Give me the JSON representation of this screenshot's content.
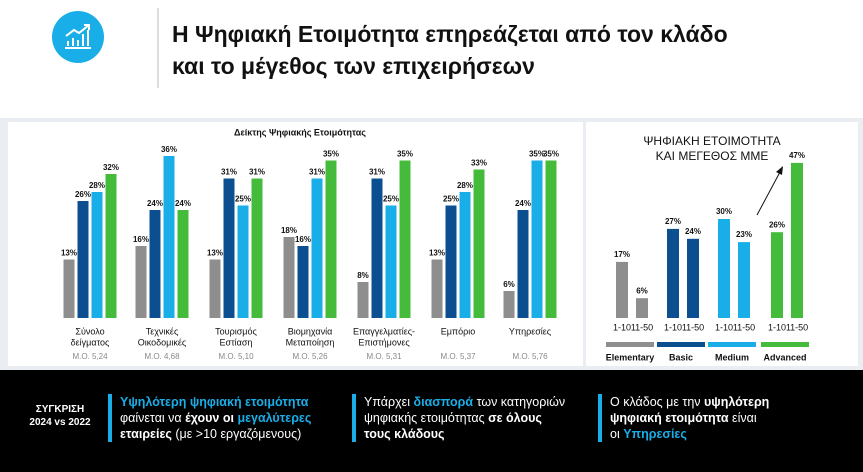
{
  "header": {
    "title_lines": [
      "Η Ψηφιακή Ετοιμότητα επηρεάζεται από τον κλάδο",
      "και το μέγεθος των επιχειρήσεων"
    ]
  },
  "chart_data": [
    {
      "type": "bar",
      "title": "Δείκτης Ψηφιακής Ετοιμότητας",
      "categories": [
        [
          "Σύνολο",
          "δείγματος"
        ],
        [
          "Τεχνικές",
          "Οικοδομικές"
        ],
        [
          "Τουρισμός",
          "Εστίαση"
        ],
        [
          "Βιομηχανία",
          "Μεταποίηση"
        ],
        [
          "Επαγγελματίες-",
          "Επιστήμονες"
        ],
        [
          "Εμπόριο"
        ],
        [
          "Υπηρεσίες"
        ]
      ],
      "mean_labels": [
        "Μ.Ο. 5,24",
        "Μ.Ο. 4,68",
        "Μ.Ο. 5,10",
        "Μ.Ο. 5,26",
        "Μ.Ο. 5,31",
        "Μ.Ο. 5,37",
        "Μ.Ο. 5,76"
      ],
      "ylim": [
        0,
        40
      ],
      "series": [
        {
          "color": "#8e8e8e",
          "values": [
            13,
            16,
            13,
            18,
            8,
            13,
            6
          ],
          "value_labels": [
            "13%",
            "16%",
            "13%",
            "18%",
            "8%",
            "13%",
            "6%"
          ]
        },
        {
          "color": "#0b4f91",
          "values": [
            26,
            24,
            31,
            16,
            31,
            25,
            24
          ],
          "value_labels": [
            "26%",
            "24%",
            "31%",
            "16%",
            "31%",
            "25%",
            "24%"
          ]
        },
        {
          "color": "#1aaee8",
          "values": [
            28,
            36,
            25,
            31,
            25,
            28,
            35
          ],
          "value_labels": [
            "28%",
            "36%",
            "25%",
            "31%",
            "25%",
            "28%",
            "35%"
          ]
        },
        {
          "color": "#44bb3a",
          "values": [
            32,
            24,
            31,
            35,
            35,
            33,
            35
          ],
          "value_labels": [
            "32%",
            "24%",
            "31%",
            "35%",
            "35%",
            "33%",
            "35%"
          ]
        }
      ]
    },
    {
      "type": "bar",
      "title_lines": [
        "ΨΗΦΙΑΚΗ ΕΤΟΙΜΟΤΗΤΑ",
        "ΚΑΙ ΜΕΓΕΘΟΣ ΜΜΕ"
      ],
      "categories": [
        "Elementary",
        "Basic",
        "Medium",
        "Advanced"
      ],
      "colors": [
        "#8e8e8e",
        "#0b4f91",
        "#1aaee8",
        "#44bb3a"
      ],
      "ylim": [
        0,
        50
      ],
      "series": [
        {
          "name": "1-10",
          "values": [
            17,
            27,
            30,
            26
          ],
          "value_labels": [
            "17%",
            "27%",
            "30%",
            "26%"
          ]
        },
        {
          "name": "11-50",
          "values": [
            6,
            24,
            23,
            47
          ],
          "value_labels": [
            "6%",
            "24%",
            "23%",
            "47%"
          ]
        }
      ]
    }
  ],
  "footer": {
    "label_lines": [
      "ΣΥΓΚΡΙΣΗ",
      "2024 vs 2022"
    ],
    "blocks": [
      [
        [
          {
            "t": "Υψηλότερη ψηφιακή ετοιμότητα",
            "s": "h"
          }
        ],
        [
          {
            "t": "φαίνεται να ",
            "s": "n"
          },
          {
            "t": "έχουν οι ",
            "s": "b"
          },
          {
            "t": "μεγαλύτερες",
            "s": "h"
          }
        ],
        [
          {
            "t": "εταιρείες",
            "s": "b"
          },
          {
            "t": " (με >10 εργαζόμενους)",
            "s": "n"
          }
        ]
      ],
      [
        [
          {
            "t": "Υπάρχει ",
            "s": "n"
          },
          {
            "t": "διασπορά",
            "s": "h"
          },
          {
            "t": " των κατηγοριών",
            "s": "n"
          }
        ],
        [
          {
            "t": "ψηφιακής ετοιμότητας ",
            "s": "n"
          },
          {
            "t": "σε όλους",
            "s": "b"
          }
        ],
        [
          {
            "t": "τους κλάδους",
            "s": "b"
          }
        ]
      ],
      [
        [
          {
            "t": "Ο κλάδος με την ",
            "s": "n"
          },
          {
            "t": "υψηλότερη",
            "s": "b"
          }
        ],
        [
          {
            "t": "ψηφιακή ετοιμότητα",
            "s": "b"
          },
          {
            "t": " είναι",
            "s": "n"
          }
        ],
        [
          {
            "t": "οι ",
            "s": "n"
          },
          {
            "t": "Υπηρεσίες",
            "s": "h"
          }
        ]
      ]
    ]
  }
}
